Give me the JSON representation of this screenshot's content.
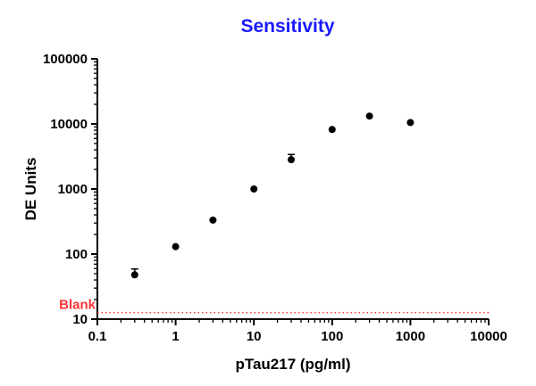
{
  "chart_data": {
    "type": "scatter",
    "title": "Sensitivity",
    "xlabel": "pTau217 (pg/ml)",
    "ylabel": "DE Units",
    "xscale": "log",
    "yscale": "log",
    "xlim": [
      0.1,
      10000
    ],
    "ylim": [
      10,
      100000
    ],
    "xticks": [
      "0.1",
      "1",
      "10",
      "100",
      "1000",
      "10000"
    ],
    "yticks": [
      "10",
      "100",
      "1000",
      "10000",
      "100000"
    ],
    "grid": false,
    "points": [
      {
        "x": 0.3,
        "y": 48,
        "err_upper": 59
      },
      {
        "x": 1,
        "y": 130
      },
      {
        "x": 3,
        "y": 333
      },
      {
        "x": 10,
        "y": 1000
      },
      {
        "x": 30,
        "y": 2820,
        "err_upper": 3390
      },
      {
        "x": 100,
        "y": 8200
      },
      {
        "x": 300,
        "y": 13200
      },
      {
        "x": 1000,
        "y": 10500
      }
    ],
    "reference_line": {
      "label": "Blank",
      "y": 12.6,
      "color": "#ff3333",
      "style": "dotted"
    },
    "colors": {
      "title": "#1a1aff",
      "points": "#000000"
    }
  }
}
